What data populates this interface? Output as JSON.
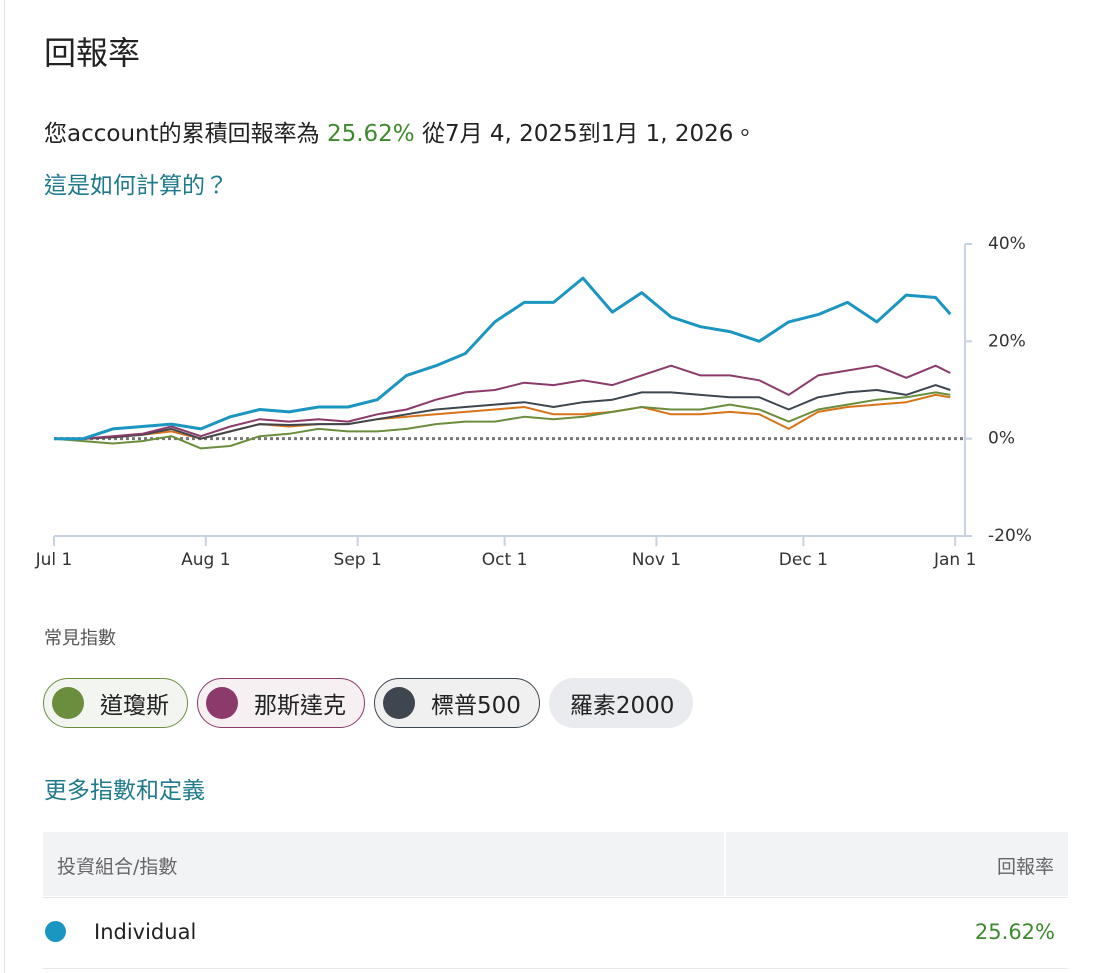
{
  "header": {
    "title": "回報率",
    "summary_prefix": "您account的累積回報率為",
    "summary_return": "25.62%",
    "summary_suffix": "從7月 4, 2025到1月 1, 2026。",
    "how_link": "這是如何計算的？"
  },
  "chart_data": {
    "type": "line",
    "x": [
      0,
      6,
      12,
      18,
      24,
      30,
      36,
      42,
      48,
      54,
      60,
      66,
      72,
      78,
      84,
      90,
      96,
      102,
      108,
      114,
      120,
      126,
      132,
      138,
      144,
      150,
      156,
      162,
      168,
      174,
      180,
      183
    ],
    "xlim": [
      0,
      186
    ],
    "xticks": [
      {
        "value": 0,
        "label": "Jul 1"
      },
      {
        "value": 31,
        "label": "Aug 1"
      },
      {
        "value": 62,
        "label": "Sep 1"
      },
      {
        "value": 92,
        "label": "Oct 1"
      },
      {
        "value": 123,
        "label": "Nov 1"
      },
      {
        "value": 153,
        "label": "Dec 1"
      },
      {
        "value": 184,
        "label": "Jan 1"
      }
    ],
    "ylim": [
      -20,
      40
    ],
    "yticks": [
      {
        "value": -20,
        "label": "-20%"
      },
      {
        "value": 0,
        "label": "0%"
      },
      {
        "value": 20,
        "label": "20%"
      },
      {
        "value": 40,
        "label": "40%"
      }
    ],
    "zero_line": true,
    "series": [
      {
        "name": "Individual",
        "color": "#1b96c0",
        "values": [
          0,
          0,
          2,
          2.5,
          3,
          2,
          4.5,
          6,
          5.5,
          6.5,
          6.5,
          8,
          13,
          15,
          17.5,
          24,
          28,
          28,
          33,
          26,
          30,
          25,
          23,
          22,
          20,
          24,
          25.5,
          28,
          24,
          29.5,
          29,
          25.6
        ]
      },
      {
        "name": "道瓊斯",
        "color": "#6b8e3e",
        "values": [
          0,
          -0.5,
          -1,
          -0.5,
          0.5,
          -2,
          -1.5,
          0.5,
          1,
          2,
          1.5,
          1.5,
          2,
          3,
          3.5,
          3.5,
          4.5,
          4,
          4.5,
          5.5,
          6.5,
          6,
          6,
          7,
          6,
          3.5,
          6,
          7,
          8,
          8.5,
          9.5,
          9
        ]
      },
      {
        "name": "那斯達克",
        "color": "#8b3a6b",
        "values": [
          0,
          0,
          0.5,
          1,
          2.5,
          0.5,
          2.5,
          4,
          3.5,
          4,
          3.5,
          5,
          6,
          8,
          9.5,
          10,
          11.5,
          11,
          12,
          11,
          13,
          15,
          13,
          13,
          12,
          9,
          13,
          14,
          15,
          12.5,
          15,
          13.5
        ]
      },
      {
        "name": "標普500",
        "color": "#3e4650",
        "values": [
          0,
          0,
          0.3,
          0.8,
          2,
          0,
          1.5,
          3,
          2.8,
          3,
          3,
          4,
          5,
          6,
          6.5,
          7,
          7.5,
          6.5,
          7.5,
          8,
          9.5,
          9.5,
          9,
          8.5,
          8.5,
          6,
          8.5,
          9.5,
          10,
          9,
          11,
          10
        ]
      },
      {
        "color": "#d9731a",
        "values": [
          0,
          0,
          0.3,
          0.8,
          1.5,
          0,
          1.5,
          3,
          2.5,
          3,
          3,
          4,
          4.5,
          5,
          5.5,
          6,
          6.5,
          5,
          5,
          5.5,
          6.5,
          5,
          5,
          5.5,
          5,
          2,
          5.5,
          6.5,
          7,
          7.5,
          9,
          8.5
        ]
      }
    ]
  },
  "indices": {
    "heading": "常見指數",
    "inactive": "羅素2000",
    "more_link": "更多指數和定義"
  },
  "table": {
    "header": [
      "投資組合/指數",
      "回報率"
    ],
    "rows": [
      [
        "Individual",
        "25.62%"
      ]
    ]
  }
}
